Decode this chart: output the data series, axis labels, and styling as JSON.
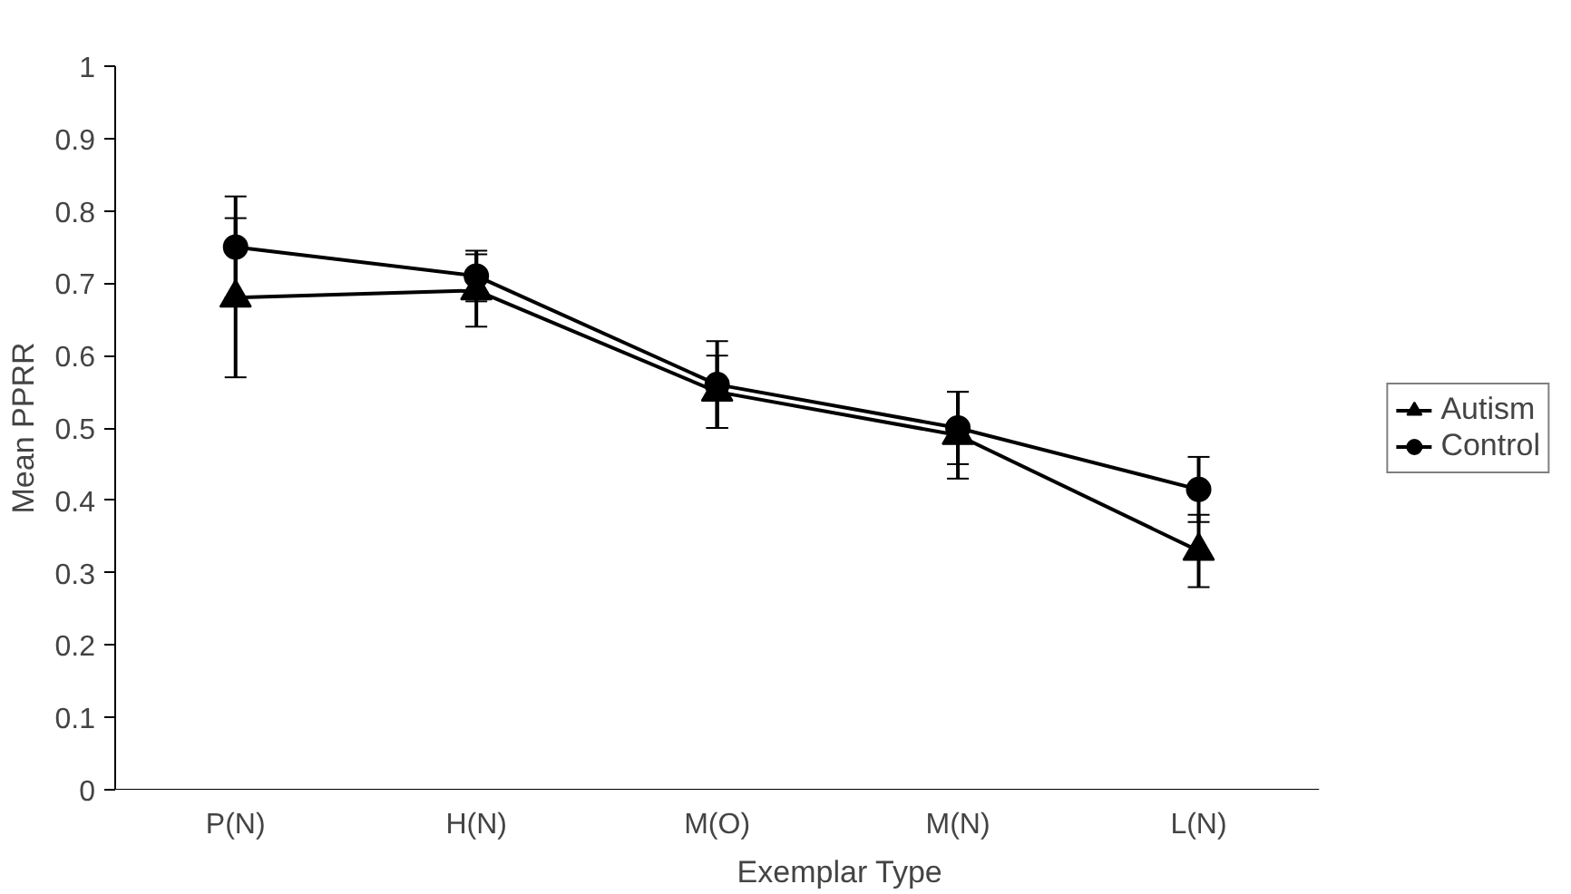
{
  "chart_data": {
    "type": "line",
    "xlabel": "Exemplar Type",
    "ylabel": "Mean PPRR",
    "categories": [
      "P(N)",
      "H(N)",
      "M(O)",
      "M(N)",
      "L(N)"
    ],
    "series": [
      {
        "name": "Autism",
        "color": "#000000",
        "marker": "triangle",
        "values": [
          0.68,
          0.69,
          0.55,
          0.49,
          0.33
        ],
        "errors": [
          0.11,
          0.05,
          0.05,
          0.06,
          0.05
        ]
      },
      {
        "name": "Control",
        "color": "#000000",
        "marker": "circle",
        "values": [
          0.75,
          0.71,
          0.56,
          0.5,
          0.415
        ],
        "errors": [
          0.07,
          0.035,
          0.06,
          0.05,
          0.045
        ]
      }
    ],
    "ylim": [
      0,
      1
    ],
    "yticks": [
      0,
      0.1,
      0.2,
      0.3,
      0.4,
      0.5,
      0.6,
      0.7,
      0.8,
      0.9,
      1
    ],
    "grid": false,
    "legend": "right",
    "line_style": "solid"
  }
}
